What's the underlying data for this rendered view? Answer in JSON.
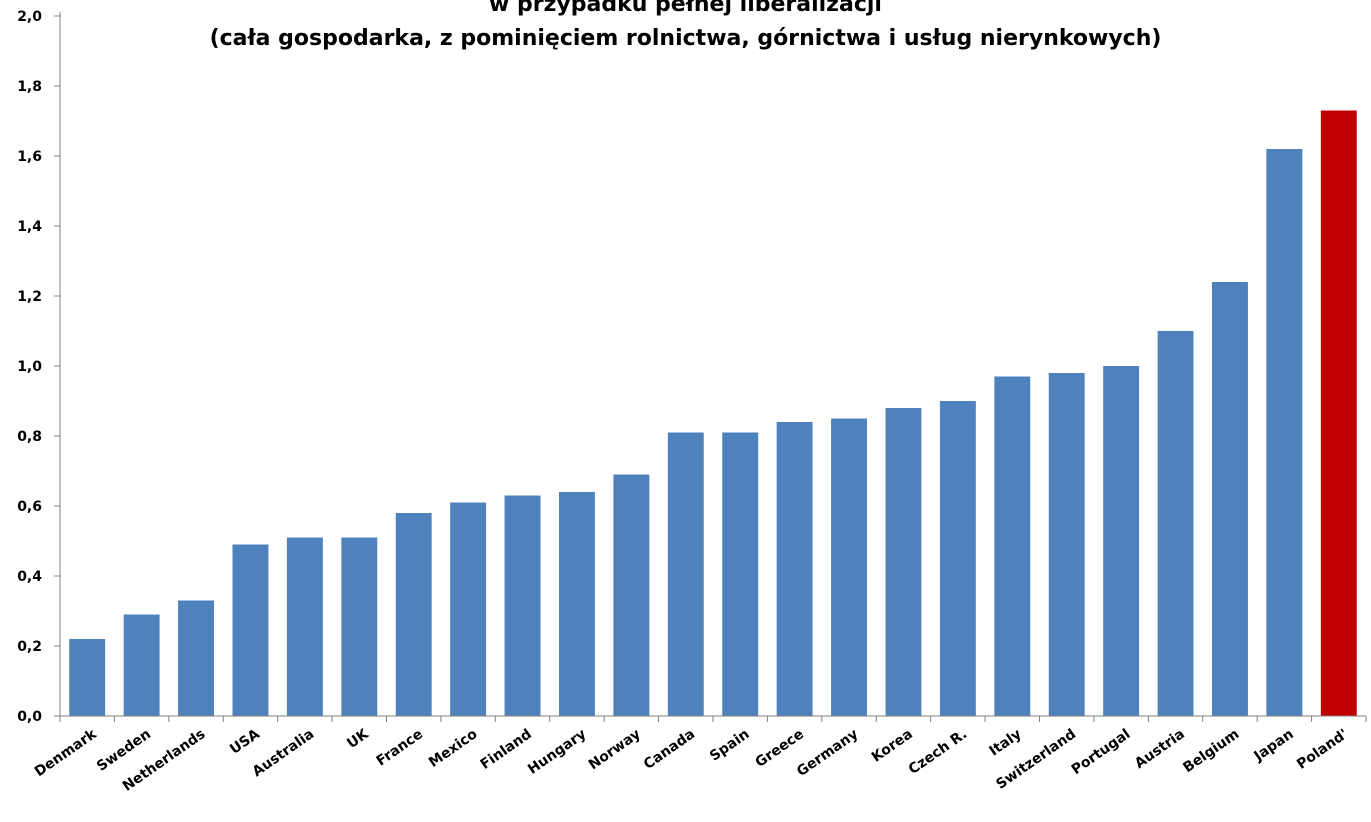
{
  "colors": {
    "bar": "#4f81bd",
    "highlight": "#c00000",
    "axis": "#7f7f7f"
  },
  "chart_data": {
    "type": "bar",
    "title_lines": [
      "w przypadku pełnej liberalizacji",
      "(cała gospodarka, z pominięciem rolnictwa, górnictwa i usług nierynkowych)"
    ],
    "xlabel": "",
    "ylabel": "",
    "ylim": [
      0,
      2.0
    ],
    "yticks": [
      "0,0",
      "0,2",
      "0,4",
      "0,6",
      "0,8",
      "1,0",
      "1,2",
      "1,4",
      "1,6",
      "1,8",
      "2,0"
    ],
    "grid": false,
    "categories": [
      "Denmark",
      "Sweden",
      "Netherlands",
      "USA",
      "Australia",
      "UK",
      "France",
      "Mexico",
      "Finland",
      "Hungary",
      "Norway",
      "Canada",
      "Spain",
      "Greece",
      "Germany",
      "Korea",
      "Czech R.",
      "Italy",
      "Switzerland",
      "Portugal",
      "Austria",
      "Belgium",
      "Japan",
      "Poland'"
    ],
    "values": [
      0.22,
      0.29,
      0.33,
      0.49,
      0.51,
      0.51,
      0.58,
      0.61,
      0.63,
      0.64,
      0.69,
      0.81,
      0.81,
      0.84,
      0.85,
      0.88,
      0.9,
      0.97,
      0.98,
      1.0,
      1.1,
      1.24,
      1.62,
      1.73
    ],
    "highlighted_category": "Poland'"
  }
}
